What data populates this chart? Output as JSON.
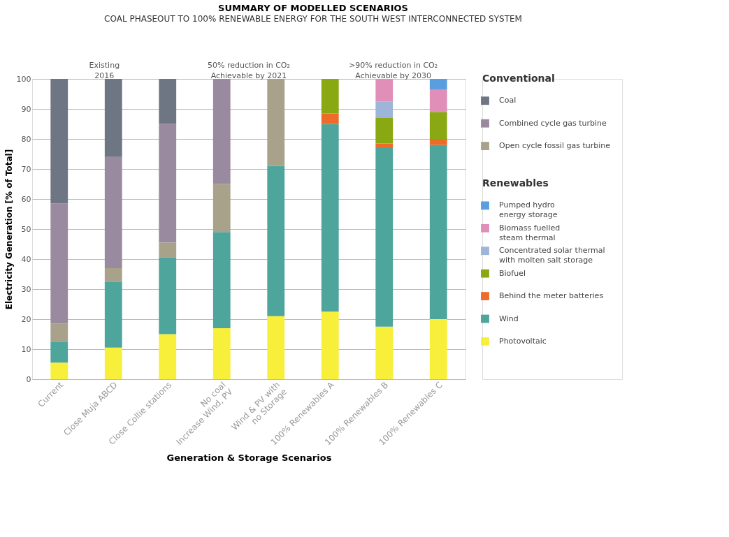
{
  "chart_data": {
    "type": "bar",
    "stacked": true,
    "title": "SUMMARY OF MODELLED SCENARIOS",
    "subtitle": "COAL PHASEOUT TO 100% RENEWABLE ENERGY FOR THE SOUTH WEST INTERCONNECTED SYSTEM",
    "xlabel": "Generation & Storage Scenarios",
    "ylabel": "Electricity Generation [% of Total]",
    "legend_title": [
      "Conventional",
      "Renewables"
    ],
    "categories": [
      "Current",
      "Close Muja ABCD",
      "Close Collie stations",
      "No coal\nIncrease Wind, PV",
      "Wind & PV with\nno Storage",
      "100% Renewables A",
      "100% Renewables B",
      "100% Renewables C"
    ],
    "ylim": [
      0,
      100
    ],
    "yticks": [
      0,
      10,
      20,
      30,
      40,
      50,
      60,
      70,
      80,
      90,
      100
    ],
    "grid": "y",
    "legend": "right",
    "annotations": [
      "Existing\n2016",
      "50% reduction in CO₂\nAchievable by 2021",
      ">90% reduction in CO₂\nAchievable by 2030"
    ],
    "series": [
      {
        "name": "Photovoltaic",
        "color": "#f7ef3a",
        "values": [
          5.5,
          10.5,
          15,
          17,
          21,
          22.5,
          17.5,
          20
        ]
      },
      {
        "name": "Wind",
        "color": "#4ea59c",
        "values": [
          7,
          22,
          25.5,
          32,
          50,
          62.5,
          59.5,
          58
        ]
      },
      {
        "name": "Behind the meter batteries",
        "color": "#ee6b2a",
        "values": [
          0,
          0,
          0,
          0,
          0,
          3.5,
          1.5,
          2
        ]
      },
      {
        "name": "Biofuel",
        "color": "#8aa812",
        "values": [
          0,
          0,
          0,
          0,
          0,
          11.5,
          8.5,
          9
        ]
      },
      {
        "name": "Concentrated solar thermal\nwith molten salt storage",
        "color": "#9db5d8",
        "values": [
          0,
          0,
          0,
          0,
          0,
          0,
          5.5,
          0
        ]
      },
      {
        "name": "Biomass fuelled\nsteam thermal",
        "color": "#e08fb8",
        "values": [
          0,
          0,
          0,
          0,
          0,
          0,
          7.5,
          7.5
        ]
      },
      {
        "name": "Pumped hydro\nenergy storage",
        "color": "#5b9ee0",
        "values": [
          0,
          0,
          0,
          0,
          0,
          0,
          0,
          3.5
        ]
      },
      {
        "name": "Open cycle fossil gas turbine",
        "color": "#a8a28a",
        "values": [
          6,
          4.5,
          5,
          16,
          29,
          0,
          0,
          0
        ]
      },
      {
        "name": "Combined cycle gas turbine",
        "color": "#9a8aa0",
        "values": [
          40,
          37,
          39.5,
          35,
          0,
          0,
          0,
          0
        ]
      },
      {
        "name": "Coal",
        "color": "#6f7683",
        "values": [
          41.5,
          26,
          15,
          0,
          0,
          0,
          0,
          0
        ]
      }
    ]
  }
}
